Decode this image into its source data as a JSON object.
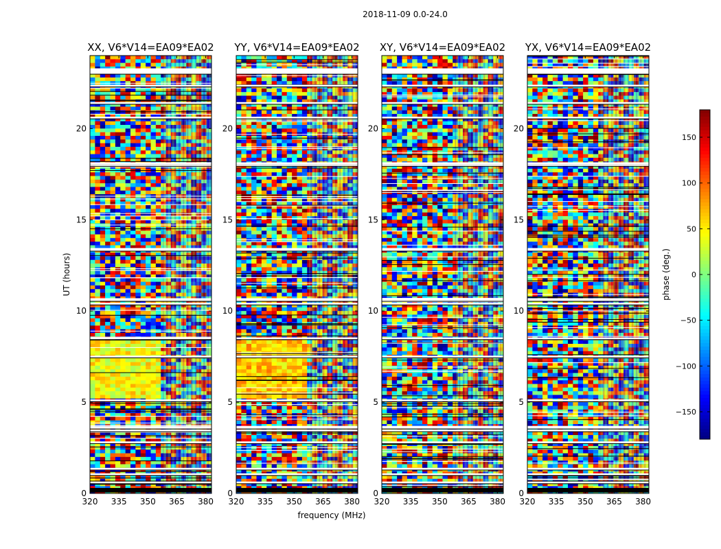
{
  "chart_data": {
    "type": "heatmap",
    "title": "2018-11-09 0.0-24.0",
    "xlabel": "frequency (MHz)",
    "ylabel": "UT (hours)",
    "xlim": [
      320,
      383
    ],
    "ylim": [
      0,
      24
    ],
    "xticks": [
      320,
      335,
      350,
      365,
      380
    ],
    "yticks": [
      0,
      5,
      10,
      15,
      20
    ],
    "panels": [
      {
        "title": "XX, V6*V14=EA09*EA02",
        "pol": "XX"
      },
      {
        "title": "YY, V6*V14=EA09*EA02",
        "pol": "YY"
      },
      {
        "title": "XY, V6*V14=EA09*EA02",
        "pol": "XY"
      },
      {
        "title": "YX, V6*V14=EA09*EA02",
        "pol": "YX"
      }
    ],
    "colorbar": {
      "label": "phase (deg.)",
      "range": [
        -180,
        180
      ],
      "ticks": [
        -150,
        -100,
        -50,
        0,
        50,
        100,
        150
      ],
      "colormap": [
        "#00007f",
        "#0000ff",
        "#007fff",
        "#00ffff",
        "#7fff7f",
        "#ffff00",
        "#ff7f00",
        "#ff0000",
        "#7f0000"
      ]
    },
    "gap_bands_hours": [
      [
        23.0,
        23.3
      ],
      [
        22.3,
        22.4
      ],
      [
        21.35,
        21.45
      ],
      [
        20.55,
        20.65
      ],
      [
        18.05,
        18.15
      ],
      [
        17.95,
        18.05
      ],
      [
        13.3,
        13.45
      ],
      [
        10.55,
        10.7
      ],
      [
        10.35,
        10.45
      ],
      [
        8.45,
        8.55
      ],
      [
        7.45,
        7.55
      ],
      [
        5.05,
        5.15
      ],
      [
        3.55,
        3.7
      ],
      [
        3.4,
        3.5
      ],
      [
        2.75,
        2.85
      ],
      [
        1.3,
        1.4
      ],
      [
        1.0,
        1.1
      ],
      [
        0.55,
        0.65
      ]
    ],
    "dark_band_hours": [
      0.05,
      0.3
    ],
    "coherent_region_hours": [
      5.3,
      8.4
    ]
  }
}
